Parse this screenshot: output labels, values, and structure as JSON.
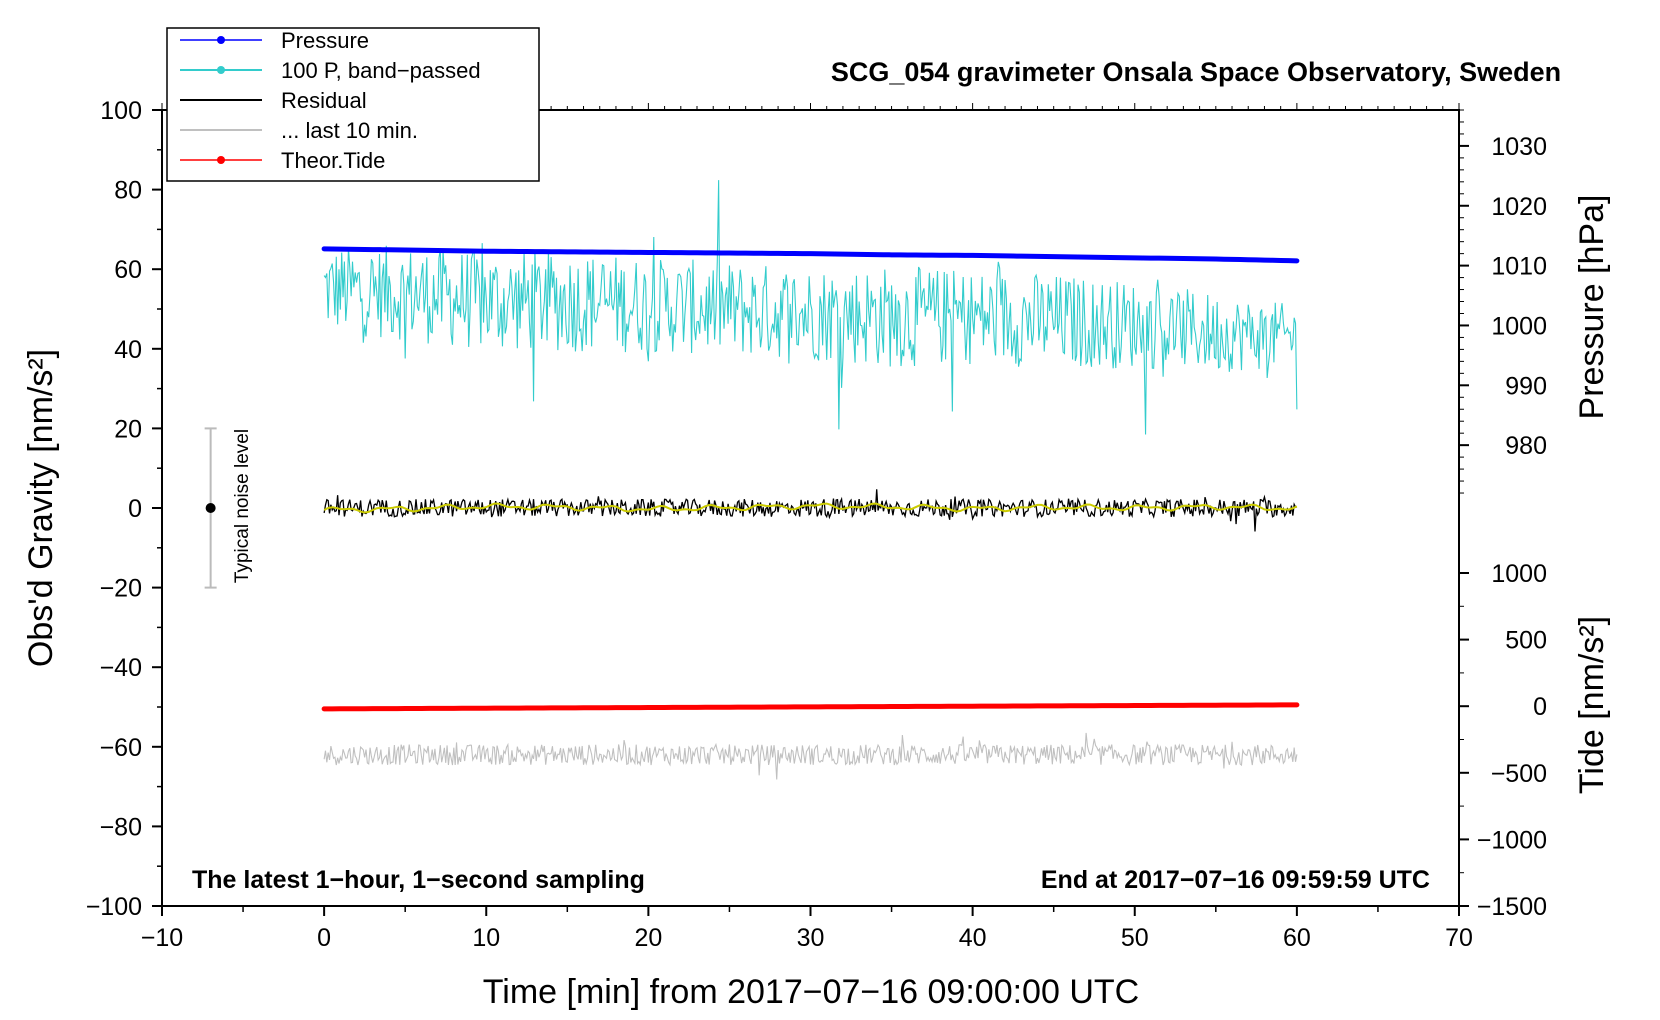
{
  "chart_data": {
    "type": "line",
    "title": "SCG_054 gravimeter Onsala Space Observatory, Sweden",
    "xlabel": "Time [min] from 2017−07−16 09:00:00 UTC",
    "ylabel": "Obs'd Gravity [nm/s²]",
    "ylabel_right_top": "Pressure [hPa]",
    "ylabel_right_bottom": "Tide [nm/s²]",
    "note_left": "The latest 1−hour, 1−second sampling",
    "note_right": "End at 2017−07−16 09:59:59 UTC",
    "noise_label": "Typical noise level",
    "xlim": [
      -10,
      70
    ],
    "ylim": [
      -100,
      100
    ],
    "pressure_lim": [
      1036,
      970
    ],
    "tide_lim": [
      -1500,
      1500
    ],
    "x_ticks": [
      -10,
      0,
      10,
      20,
      30,
      40,
      50,
      60,
      70
    ],
    "x_tick_labels": [
      "−10",
      "0",
      "10",
      "20",
      "30",
      "40",
      "50",
      "60",
      "70"
    ],
    "y_ticks": [
      -100,
      -80,
      -60,
      -40,
      -20,
      0,
      20,
      40,
      60,
      80,
      100
    ],
    "y_tick_labels": [
      "−100",
      "−80",
      "−60",
      "−40",
      "−20",
      "0",
      "20",
      "40",
      "60",
      "80",
      "100"
    ],
    "pressure_ticks": [
      980,
      990,
      1000,
      1010,
      1020,
      1030
    ],
    "pressure_tick_labels": [
      "980",
      "990",
      "1000",
      "1010",
      "1020",
      "1030"
    ],
    "tide_ticks": [
      -1500,
      -1000,
      -500,
      0,
      500,
      1000
    ],
    "tide_tick_labels": [
      "−1500",
      "−1000",
      "−500",
      "0",
      "500",
      "1000"
    ],
    "noise_bar": {
      "x": -7,
      "center": 0,
      "low": -20,
      "high": 20
    },
    "legend_position": "top-left",
    "series": [
      {
        "name": "Pressure",
        "color": "#0000ff",
        "axis": "pressure",
        "kind": "line-dot",
        "x": [
          0,
          5,
          10,
          15,
          20,
          25,
          30,
          35,
          40,
          45,
          50,
          55,
          60
        ],
        "values": [
          1012.8,
          1012.6,
          1012.4,
          1012.3,
          1012.2,
          1012.1,
          1012.0,
          1011.8,
          1011.7,
          1011.5,
          1011.3,
          1011.1,
          1010.8
        ]
      },
      {
        "name": "100 P, band−passed",
        "color": "#33cccc",
        "axis": "gravity",
        "kind": "noisy",
        "x": [
          0,
          5,
          10,
          15,
          20,
          25,
          30,
          35,
          40,
          45,
          50,
          55,
          60
        ],
        "values": [
          55,
          54,
          52,
          52,
          51,
          50,
          49,
          48,
          48,
          47,
          46,
          44,
          43
        ],
        "amplitude": [
          11,
          12,
          13,
          13,
          12,
          12,
          12,
          13,
          12,
          12,
          11,
          10,
          8
        ]
      },
      {
        "name": "Residual",
        "color": "#000000",
        "axis": "gravity",
        "kind": "noisy",
        "x": [
          0,
          5,
          10,
          15,
          20,
          25,
          30,
          35,
          40,
          45,
          50,
          55,
          60
        ],
        "values": [
          0,
          0,
          0,
          0,
          0,
          0,
          0,
          0,
          0,
          0,
          0,
          0,
          0
        ],
        "amplitude": [
          2.2,
          2.2,
          2.3,
          2.2,
          2.2,
          2.2,
          2.4,
          2.3,
          2.2,
          2.2,
          2.2,
          2.3,
          2.3
        ]
      },
      {
        "name": "... last 10 min.",
        "color": "#c0c0c0",
        "axis": "gravity",
        "kind": "noisy",
        "x": [
          0,
          5,
          10,
          15,
          20,
          25,
          30,
          35,
          40,
          45,
          50,
          55,
          60
        ],
        "values": [
          -62,
          -62,
          -62,
          -62,
          -62,
          -62,
          -62,
          -62,
          -62,
          -62,
          -62,
          -62,
          -62
        ],
        "amplitude": [
          2.6,
          2.6,
          2.6,
          2.6,
          2.6,
          2.6,
          2.6,
          2.6,
          2.6,
          2.6,
          2.6,
          2.6,
          2.6
        ]
      },
      {
        "name": "Theor.Tide",
        "color": "#ff0000",
        "axis": "tide",
        "kind": "line-dot",
        "x": [
          0,
          10,
          20,
          30,
          40,
          50,
          60
        ],
        "values": [
          -20,
          -15,
          -10,
          -5,
          0,
          5,
          10
        ]
      },
      {
        "name": "",
        "color": "#cccc00",
        "axis": "gravity",
        "kind": "smooth",
        "x": [
          0,
          5,
          10,
          15,
          20,
          25,
          30,
          35,
          40,
          45,
          50,
          55,
          60
        ],
        "values": [
          -0.5,
          -0.2,
          0.4,
          0.2,
          -0.3,
          0.1,
          0.5,
          0.3,
          -0.2,
          0.2,
          0.0,
          0.3,
          -0.1
        ]
      }
    ]
  }
}
